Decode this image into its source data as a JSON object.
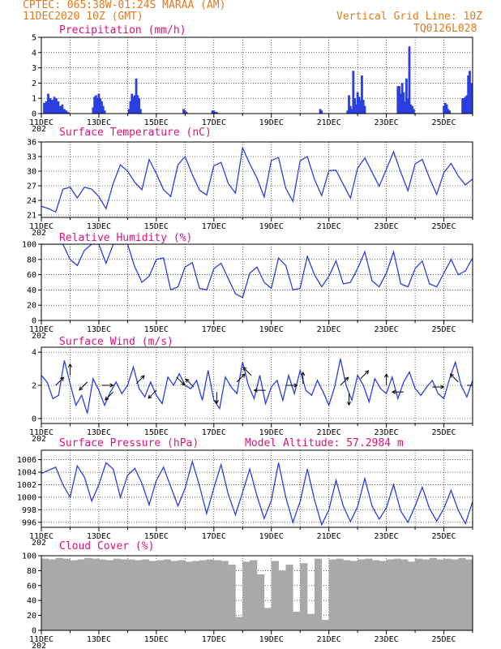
{
  "header": {
    "line1": "CPTEC:   065:38W-01:24S   MARAA (AM)",
    "line2": "11DEC2020 10Z (GMT)",
    "grid_note": "Vertical Grid Line: 10Z",
    "code": "TQ0126L028"
  },
  "colors": {
    "header": "#e07a1f",
    "panel_title": "#e0127a",
    "series": "#2b3fe0",
    "cloud_fill": "#a9a9a9",
    "arrows": "#000000"
  },
  "x_axis": {
    "tick_labels": [
      "11DEC",
      "13DEC",
      "15DEC",
      "17DEC",
      "19DEC",
      "21DEC",
      "23DEC",
      "25DEC"
    ],
    "clipped_year_label": "202",
    "range_days": [
      0,
      15
    ]
  },
  "chart_data": [
    {
      "id": "precip",
      "type": "bar",
      "title": "Precipitation (mm/h)",
      "ylim": [
        0,
        5
      ],
      "yticks": [
        0,
        1,
        2,
        3,
        4,
        5
      ],
      "x_days": [
        0.1,
        0.17,
        0.24,
        0.31,
        0.38,
        0.45,
        0.52,
        0.59,
        0.66,
        0.73,
        0.8,
        0.87,
        0.94,
        1.8,
        1.85,
        1.9,
        1.95,
        2.0,
        2.05,
        2.1,
        2.15,
        2.2,
        3.05,
        3.1,
        3.15,
        3.2,
        3.25,
        3.3,
        3.35,
        3.4,
        3.45,
        4.95,
        5.0,
        5.05,
        5.95,
        6.0,
        6.05,
        6.1,
        9.7,
        9.75,
        10.65,
        10.7,
        10.75,
        10.8,
        10.85,
        10.9,
        10.95,
        11.0,
        11.05,
        11.1,
        11.15,
        11.2,
        11.25,
        12.4,
        12.45,
        12.5,
        12.55,
        12.6,
        12.65,
        12.7,
        12.75,
        12.8,
        12.85,
        12.9,
        12.95,
        14.0,
        14.05,
        14.1,
        14.15,
        14.2,
        14.65,
        14.7,
        14.75,
        14.8,
        14.85,
        14.9,
        14.95
      ],
      "values": [
        0.7,
        0.8,
        1.3,
        1.0,
        0.9,
        1.1,
        1.0,
        0.8,
        0.5,
        0.6,
        0.3,
        0.2,
        0.1,
        0.4,
        1.1,
        1.2,
        1.0,
        1.3,
        1.0,
        0.8,
        0.5,
        0.2,
        0.3,
        0.8,
        1.3,
        1.1,
        1.2,
        2.3,
        1.2,
        1.0,
        0.3,
        0.3,
        0.2,
        0.1,
        0.2,
        0.2,
        0.1,
        0.1,
        0.3,
        0.2,
        0.2,
        1.2,
        0.5,
        0.3,
        2.8,
        1.0,
        0.6,
        1.4,
        1.1,
        0.9,
        2.5,
        0.9,
        0.5,
        1.8,
        1.8,
        1.3,
        2.0,
        1.4,
        0.8,
        2.3,
        1.0,
        4.4,
        0.6,
        0.5,
        0.3,
        0.5,
        0.7,
        0.6,
        0.3,
        0.2,
        1.0,
        1.0,
        1.1,
        1.2,
        2.5,
        2.8,
        2.0
      ]
    },
    {
      "id": "temperature",
      "type": "line",
      "title": "Surface Temperature (nC)",
      "ylim": [
        20.5,
        36
      ],
      "yticks": [
        21,
        24,
        27,
        30,
        33,
        36
      ],
      "x": [
        0,
        0.25,
        0.5,
        0.75,
        1.0,
        1.25,
        1.5,
        1.75,
        2.0,
        2.25,
        2.5,
        2.75,
        3.0,
        3.25,
        3.5,
        3.75,
        4.0,
        4.25,
        4.5,
        4.75,
        5.0,
        5.25,
        5.5,
        5.75,
        6.0,
        6.25,
        6.5,
        6.75,
        7.0,
        7.25,
        7.5,
        7.75,
        8.0,
        8.25,
        8.5,
        8.75,
        9.0,
        9.25,
        9.5,
        9.75,
        10.0,
        10.25,
        10.5,
        10.75,
        11.0,
        11.25,
        11.5,
        11.75,
        12.0,
        12.25,
        12.5,
        12.75,
        13.0,
        13.25,
        13.5,
        13.75,
        14.0,
        14.25,
        14.5,
        14.75,
        15.0
      ],
      "values": [
        22.8,
        22.3,
        21.6,
        26.3,
        26.7,
        24.5,
        26.7,
        26.3,
        24.8,
        22.3,
        27.5,
        31.3,
        30.0,
        27.7,
        26.2,
        32.4,
        29.5,
        26.2,
        24.8,
        31.3,
        33.0,
        29.3,
        26.1,
        25.1,
        31.1,
        31.8,
        27.5,
        25.5,
        34.8,
        31.5,
        28.6,
        24.7,
        32.2,
        32.8,
        26.5,
        23.8,
        32.1,
        33.0,
        28.3,
        25.0,
        30.1,
        30.2,
        27.3,
        24.5,
        30.6,
        32.7,
        29.8,
        26.9,
        30.4,
        34.0,
        29.8,
        26.0,
        31.5,
        32.4,
        28.6,
        25.2,
        29.7,
        31.6,
        29.0,
        27.2,
        28.4
      ]
    },
    {
      "id": "humidity",
      "type": "line",
      "title": "Relative Humidity (%)",
      "ylim": [
        0,
        100
      ],
      "yticks": [
        0,
        20,
        40,
        60,
        80,
        100
      ],
      "x": [
        0,
        0.25,
        0.5,
        0.75,
        1.0,
        1.25,
        1.5,
        1.75,
        2.0,
        2.25,
        2.5,
        2.75,
        3.0,
        3.25,
        3.5,
        3.75,
        4.0,
        4.25,
        4.5,
        4.75,
        5.0,
        5.25,
        5.5,
        5.75,
        6.0,
        6.25,
        6.5,
        6.75,
        7.0,
        7.25,
        7.5,
        7.75,
        8.0,
        8.25,
        8.5,
        8.75,
        9.0,
        9.25,
        9.5,
        9.75,
        10.0,
        10.25,
        10.5,
        10.75,
        11.0,
        11.25,
        11.5,
        11.75,
        12.0,
        12.25,
        12.5,
        12.75,
        13.0,
        13.25,
        13.5,
        13.75,
        14.0,
        14.25,
        14.5,
        14.75,
        15.0
      ],
      "values": [
        100,
        100,
        100,
        100,
        80,
        72,
        92,
        100,
        100,
        75,
        100,
        100,
        100,
        70,
        50,
        58,
        80,
        82,
        40,
        44,
        70,
        76,
        42,
        40,
        68,
        75,
        55,
        35,
        30,
        62,
        70,
        50,
        42,
        82,
        72,
        40,
        42,
        84,
        60,
        44,
        58,
        78,
        48,
        50,
        68,
        90,
        52,
        44,
        62,
        90,
        48,
        44,
        68,
        78,
        48,
        44,
        62,
        80,
        60,
        65,
        82
      ]
    },
    {
      "id": "wind",
      "type": "line",
      "title": "Surface Wind (m/s)",
      "ylim": [
        -0.3,
        4.3
      ],
      "yticks": [
        0,
        2,
        4
      ],
      "x": [
        0,
        0.2,
        0.4,
        0.6,
        0.8,
        1.0,
        1.2,
        1.4,
        1.6,
        1.8,
        2.0,
        2.2,
        2.4,
        2.6,
        2.8,
        3.0,
        3.2,
        3.4,
        3.6,
        3.8,
        4.0,
        4.2,
        4.4,
        4.6,
        4.8,
        5.0,
        5.2,
        5.4,
        5.6,
        5.8,
        6.0,
        6.2,
        6.4,
        6.6,
        6.8,
        7.0,
        7.2,
        7.4,
        7.6,
        7.8,
        8.0,
        8.2,
        8.4,
        8.6,
        8.8,
        9.0,
        9.2,
        9.4,
        9.6,
        9.8,
        10.0,
        10.2,
        10.4,
        10.6,
        10.8,
        11.0,
        11.2,
        11.4,
        11.6,
        11.8,
        12.0,
        12.2,
        12.4,
        12.6,
        12.8,
        13.0,
        13.2,
        13.4,
        13.6,
        13.8,
        14.0,
        14.2,
        14.4,
        14.6,
        14.8,
        15.0
      ],
      "values": [
        2.6,
        2.2,
        1.2,
        1.4,
        3.5,
        2.1,
        0.8,
        1.4,
        0.3,
        2.4,
        1.7,
        0.8,
        1.6,
        2.2,
        1.5,
        2.0,
        3.1,
        1.8,
        1.3,
        2.2,
        1.4,
        0.9,
        2.5,
        2.0,
        2.7,
        2.0,
        1.8,
        2.3,
        1.1,
        2.9,
        1.1,
        0.6,
        2.5,
        1.9,
        1.5,
        3.4,
        2.0,
        1.2,
        2.6,
        0.9,
        1.9,
        2.3,
        1.1,
        2.6,
        1.5,
        2.9,
        1.7,
        1.4,
        2.3,
        1.6,
        0.8,
        1.9,
        3.6,
        2.0,
        1.1,
        2.6,
        2.0,
        1.0,
        2.4,
        1.8,
        1.5,
        2.5,
        1.2,
        2.2,
        2.8,
        1.8,
        1.4,
        1.9,
        2.3,
        1.5,
        1.2,
        2.4,
        3.4,
        2.0,
        1.3,
        2.3
      ],
      "arrows": [
        {
          "x_day": 0.5,
          "speed": 2.0,
          "dir": "ne"
        },
        {
          "x_day": 1.0,
          "speed": 2.6,
          "dir": "n"
        },
        {
          "x_day": 1.6,
          "speed": 2.2,
          "dir": "sw"
        },
        {
          "x_day": 2.1,
          "speed": 2.0,
          "dir": "e"
        },
        {
          "x_day": 2.5,
          "speed": 1.6,
          "dir": "sw"
        },
        {
          "x_day": 3.3,
          "speed": 2.1,
          "dir": "ne"
        },
        {
          "x_day": 4.0,
          "speed": 1.7,
          "dir": "sw"
        },
        {
          "x_day": 4.7,
          "speed": 2.5,
          "dir": "se"
        },
        {
          "x_day": 5.3,
          "speed": 1.9,
          "dir": "nw"
        },
        {
          "x_day": 6.1,
          "speed": 1.6,
          "dir": "s"
        },
        {
          "x_day": 6.8,
          "speed": 2.2,
          "dir": "ne"
        },
        {
          "x_day": 7.3,
          "speed": 2.6,
          "dir": "nw"
        },
        {
          "x_day": 7.8,
          "speed": 1.7,
          "dir": "w"
        },
        {
          "x_day": 8.5,
          "speed": 2.0,
          "dir": "e"
        },
        {
          "x_day": 9.1,
          "speed": 2.1,
          "dir": "n"
        },
        {
          "x_day": 10.4,
          "speed": 2.0,
          "dir": "ne"
        },
        {
          "x_day": 10.7,
          "speed": 1.5,
          "dir": "s"
        },
        {
          "x_day": 11.1,
          "speed": 2.4,
          "dir": "ne"
        },
        {
          "x_day": 12.0,
          "speed": 2.0,
          "dir": "n"
        },
        {
          "x_day": 12.6,
          "speed": 1.6,
          "dir": "w"
        },
        {
          "x_day": 13.6,
          "speed": 1.9,
          "dir": "e"
        },
        {
          "x_day": 14.5,
          "speed": 2.2,
          "dir": "nw"
        },
        {
          "x_day": 14.8,
          "speed": 2.0,
          "dir": "e"
        }
      ]
    },
    {
      "id": "pressure",
      "type": "line",
      "title": "Surface Pressure (hPa)",
      "annotation": "Model Altitude: 57.2984 m",
      "ylim": [
        995.2,
        1007.5
      ],
      "yticks": [
        996,
        998,
        1000,
        1002,
        1004,
        1006
      ],
      "x": [
        0,
        0.25,
        0.5,
        0.75,
        1.0,
        1.25,
        1.5,
        1.75,
        2.0,
        2.25,
        2.5,
        2.75,
        3.0,
        3.25,
        3.5,
        3.75,
        4.0,
        4.25,
        4.5,
        4.75,
        5.0,
        5.25,
        5.5,
        5.75,
        6.0,
        6.25,
        6.5,
        6.75,
        7.0,
        7.25,
        7.5,
        7.75,
        8.0,
        8.25,
        8.5,
        8.75,
        9.0,
        9.25,
        9.5,
        9.75,
        10.0,
        10.25,
        10.5,
        10.75,
        11.0,
        11.25,
        11.5,
        11.75,
        12.0,
        12.25,
        12.5,
        12.75,
        13.0,
        13.25,
        13.5,
        13.75,
        14.0,
        14.25,
        14.5,
        14.75,
        15.0
      ],
      "values": [
        1003.8,
        1004.3,
        1004.8,
        1002.0,
        1000.0,
        1005.0,
        1003.2,
        999.4,
        1002.0,
        1005.5,
        1004.5,
        1000.0,
        1003.5,
        1004.6,
        1002.2,
        998.8,
        1002.7,
        1004.8,
        1001.7,
        998.6,
        1001.4,
        1005.7,
        1001.8,
        997.4,
        1001.5,
        1005.2,
        1000.5,
        997.2,
        1000.8,
        1004.5,
        1000.2,
        996.6,
        999.5,
        1005.5,
        1000.0,
        996.0,
        999.3,
        1004.5,
        999.6,
        995.6,
        998.0,
        1002.7,
        998.6,
        996.1,
        998.5,
        1003.0,
        998.6,
        996.5,
        998.3,
        1002.0,
        997.8,
        996.0,
        998.6,
        1001.6,
        998.2,
        996.2,
        998.2,
        1001.1,
        997.9,
        995.8,
        999.3
      ]
    },
    {
      "id": "cloud",
      "type": "area",
      "title": "Cloud Cover (%)",
      "ylim": [
        0,
        100
      ],
      "yticks": [
        0,
        20,
        40,
        60,
        80,
        100
      ],
      "x": [
        0,
        0.25,
        0.5,
        0.75,
        1.0,
        1.25,
        1.5,
        1.75,
        2.0,
        2.25,
        2.5,
        2.75,
        3.0,
        3.25,
        3.5,
        3.75,
        4.0,
        4.25,
        4.5,
        4.75,
        5.0,
        5.25,
        5.5,
        5.75,
        6.0,
        6.25,
        6.5,
        6.75,
        7.0,
        7.25,
        7.5,
        7.75,
        8.0,
        8.25,
        8.5,
        8.75,
        9.0,
        9.25,
        9.5,
        9.75,
        10.0,
        10.25,
        10.5,
        10.75,
        11.0,
        11.25,
        11.5,
        11.75,
        12.0,
        12.25,
        12.5,
        12.75,
        13.0,
        13.25,
        13.5,
        13.75,
        14.0,
        14.25,
        14.5,
        14.75,
        15.0
      ],
      "values": [
        96,
        95,
        97,
        96,
        94,
        95,
        97,
        96,
        95,
        94,
        96,
        95,
        95,
        94,
        95,
        93,
        94,
        95,
        93,
        94,
        92,
        93,
        94,
        95,
        94,
        93,
        88,
        18,
        92,
        94,
        75,
        30,
        93,
        80,
        88,
        25,
        90,
        22,
        96,
        14,
        95,
        96,
        94,
        93,
        95,
        96,
        94,
        93,
        95,
        96,
        95,
        92,
        96,
        95,
        97,
        95,
        96,
        95,
        97,
        95,
        96
      ]
    }
  ]
}
